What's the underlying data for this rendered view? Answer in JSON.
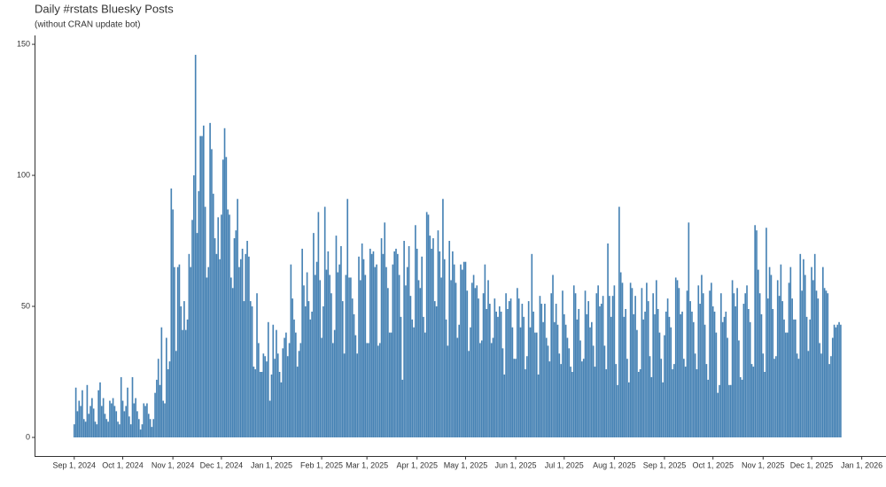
{
  "chart_data": {
    "type": "bar",
    "title": "Daily #rstats Bluesky Posts",
    "subtitle": "(without CRAN update bot)",
    "color": "#4682b4",
    "x": [
      "2024-09-01",
      "2024-09-02",
      "2024-09-03",
      "2024-09-04",
      "2024-09-05",
      "2024-09-06",
      "2024-09-07",
      "2024-09-08",
      "2024-09-09",
      "2024-09-10",
      "2024-09-11",
      "2024-09-12",
      "2024-09-13",
      "2024-09-14",
      "2024-09-15",
      "2024-09-16",
      "2024-09-17",
      "2024-09-18",
      "2024-09-19",
      "2024-09-20",
      "2024-09-21",
      "2024-09-22",
      "2024-09-23",
      "2024-09-24",
      "2024-09-25",
      "2024-09-26",
      "2024-09-27",
      "2024-09-28",
      "2024-09-29",
      "2024-09-30",
      "2024-10-01",
      "2024-10-02",
      "2024-10-03",
      "2024-10-04",
      "2024-10-05",
      "2024-10-06",
      "2024-10-07",
      "2024-10-08",
      "2024-10-09",
      "2024-10-10",
      "2024-10-11",
      "2024-10-12",
      "2024-10-13",
      "2024-10-14",
      "2024-10-15",
      "2024-10-16",
      "2024-10-17",
      "2024-10-18",
      "2024-10-19",
      "2024-10-20",
      "2024-10-21",
      "2024-10-22",
      "2024-10-23",
      "2024-10-24",
      "2024-10-25",
      "2024-10-26",
      "2024-10-27",
      "2024-10-28",
      "2024-10-29",
      "2024-10-30",
      "2024-10-31",
      "2024-11-01",
      "2024-11-02",
      "2024-11-03",
      "2024-11-04",
      "2024-11-05",
      "2024-11-06",
      "2024-11-07",
      "2024-11-08",
      "2024-11-09",
      "2024-11-10",
      "2024-11-11",
      "2024-11-12",
      "2024-11-13",
      "2024-11-14",
      "2024-11-15",
      "2024-11-16",
      "2024-11-17",
      "2024-11-18",
      "2024-11-19",
      "2024-11-20",
      "2024-11-21",
      "2024-11-22",
      "2024-11-23",
      "2024-11-24",
      "2024-11-25",
      "2024-11-26",
      "2024-11-27",
      "2024-11-28",
      "2024-11-29",
      "2024-11-30",
      "2024-12-01",
      "2024-12-02",
      "2024-12-03",
      "2024-12-04",
      "2024-12-05",
      "2024-12-06",
      "2024-12-07",
      "2024-12-08",
      "2024-12-09",
      "2024-12-10",
      "2024-12-11",
      "2024-12-12",
      "2024-12-13",
      "2024-12-14",
      "2024-12-15",
      "2024-12-16",
      "2024-12-17",
      "2024-12-18",
      "2024-12-19",
      "2024-12-20",
      "2024-12-21",
      "2024-12-22",
      "2024-12-23",
      "2024-12-24",
      "2024-12-25",
      "2024-12-26",
      "2024-12-27",
      "2024-12-28",
      "2024-12-29",
      "2024-12-30",
      "2024-12-31",
      "2025-01-01",
      "2025-01-02",
      "2025-01-03",
      "2025-01-04",
      "2025-01-05",
      "2025-01-06",
      "2025-01-07",
      "2025-01-08",
      "2025-01-09",
      "2025-01-10",
      "2025-01-11",
      "2025-01-12",
      "2025-01-13",
      "2025-01-14",
      "2025-01-15",
      "2025-01-16",
      "2025-01-17",
      "2025-01-18",
      "2025-01-19",
      "2025-01-20",
      "2025-01-21",
      "2025-01-22",
      "2025-01-23",
      "2025-01-24",
      "2025-01-25",
      "2025-01-26",
      "2025-01-27",
      "2025-01-28",
      "2025-01-29",
      "2025-01-30",
      "2025-01-31",
      "2025-02-01",
      "2025-02-02",
      "2025-02-03",
      "2025-02-04",
      "2025-02-05",
      "2025-02-06",
      "2025-02-07",
      "2025-02-08",
      "2025-02-09",
      "2025-02-10",
      "2025-02-11",
      "2025-02-12",
      "2025-02-13",
      "2025-02-14",
      "2025-02-15",
      "2025-02-16",
      "2025-02-17",
      "2025-02-18",
      "2025-02-19",
      "2025-02-20",
      "2025-02-21",
      "2025-02-22",
      "2025-02-23",
      "2025-02-24",
      "2025-02-25",
      "2025-02-26",
      "2025-02-27",
      "2025-02-28",
      "2025-03-01",
      "2025-03-02",
      "2025-03-03",
      "2025-03-04",
      "2025-03-05",
      "2025-03-06",
      "2025-03-07",
      "2025-03-08",
      "2025-03-09",
      "2025-03-10",
      "2025-03-11",
      "2025-03-12",
      "2025-03-13",
      "2025-03-14",
      "2025-03-15",
      "2025-03-16",
      "2025-03-17",
      "2025-03-18",
      "2025-03-19",
      "2025-03-20",
      "2025-03-21",
      "2025-03-22",
      "2025-03-23",
      "2025-03-24",
      "2025-03-25",
      "2025-03-26",
      "2025-03-27",
      "2025-03-28",
      "2025-03-29",
      "2025-03-30",
      "2025-03-31",
      "2025-04-01",
      "2025-04-02",
      "2025-04-03",
      "2025-04-04",
      "2025-04-05",
      "2025-04-06",
      "2025-04-07",
      "2025-04-08",
      "2025-04-09",
      "2025-04-10",
      "2025-04-11",
      "2025-04-12",
      "2025-04-13",
      "2025-04-14",
      "2025-04-15",
      "2025-04-16",
      "2025-04-17",
      "2025-04-18",
      "2025-04-19",
      "2025-04-20",
      "2025-04-21",
      "2025-04-22",
      "2025-04-23",
      "2025-04-24",
      "2025-04-25",
      "2025-04-26",
      "2025-04-27",
      "2025-04-28",
      "2025-04-29",
      "2025-04-30",
      "2025-05-01",
      "2025-05-02",
      "2025-05-03",
      "2025-05-04",
      "2025-05-05",
      "2025-05-06",
      "2025-05-07",
      "2025-05-08",
      "2025-05-09",
      "2025-05-10",
      "2025-05-11",
      "2025-05-12",
      "2025-05-13",
      "2025-05-14",
      "2025-05-15",
      "2025-05-16",
      "2025-05-17",
      "2025-05-18",
      "2025-05-19",
      "2025-05-20",
      "2025-05-21",
      "2025-05-22",
      "2025-05-23",
      "2025-05-24",
      "2025-05-25",
      "2025-05-26",
      "2025-05-27",
      "2025-05-28",
      "2025-05-29",
      "2025-05-30",
      "2025-05-31",
      "2025-06-01",
      "2025-06-02",
      "2025-06-03",
      "2025-06-04",
      "2025-06-05",
      "2025-06-06",
      "2025-06-07",
      "2025-06-08",
      "2025-06-09",
      "2025-06-10",
      "2025-06-11",
      "2025-06-12",
      "2025-06-13",
      "2025-06-14",
      "2025-06-15",
      "2025-06-16",
      "2025-06-17",
      "2025-06-18",
      "2025-06-19",
      "2025-06-20",
      "2025-06-21",
      "2025-06-22",
      "2025-06-23",
      "2025-06-24",
      "2025-06-25",
      "2025-06-26",
      "2025-06-27",
      "2025-06-28",
      "2025-06-29",
      "2025-06-30",
      "2025-07-01",
      "2025-07-02",
      "2025-07-03",
      "2025-07-04",
      "2025-07-05",
      "2025-07-06",
      "2025-07-07",
      "2025-07-08",
      "2025-07-09",
      "2025-07-10",
      "2025-07-11",
      "2025-07-12",
      "2025-07-13",
      "2025-07-14",
      "2025-07-15",
      "2025-07-16",
      "2025-07-17",
      "2025-07-18",
      "2025-07-19",
      "2025-07-20",
      "2025-07-21",
      "2025-07-22",
      "2025-07-23",
      "2025-07-24",
      "2025-07-25",
      "2025-07-26",
      "2025-07-27",
      "2025-07-28",
      "2025-07-29",
      "2025-07-30",
      "2025-07-31",
      "2025-08-01",
      "2025-08-02",
      "2025-08-03",
      "2025-08-04",
      "2025-08-05",
      "2025-08-06",
      "2025-08-07",
      "2025-08-08",
      "2025-08-09",
      "2025-08-10",
      "2025-08-11",
      "2025-08-12",
      "2025-08-13",
      "2025-08-14",
      "2025-08-15",
      "2025-08-16",
      "2025-08-17",
      "2025-08-18",
      "2025-08-19",
      "2025-08-20",
      "2025-08-21",
      "2025-08-22",
      "2025-08-23",
      "2025-08-24",
      "2025-08-25",
      "2025-08-26",
      "2025-08-27",
      "2025-08-28",
      "2025-08-29",
      "2025-08-30",
      "2025-08-31",
      "2025-09-01",
      "2025-09-02",
      "2025-09-03",
      "2025-09-04",
      "2025-09-05",
      "2025-09-06",
      "2025-09-07",
      "2025-09-08",
      "2025-09-09",
      "2025-09-10",
      "2025-09-11",
      "2025-09-12",
      "2025-09-13",
      "2025-09-14",
      "2025-09-15",
      "2025-09-16",
      "2025-09-17",
      "2025-09-18",
      "2025-09-19",
      "2025-09-20",
      "2025-09-21",
      "2025-09-22",
      "2025-09-23",
      "2025-09-24",
      "2025-09-25",
      "2025-09-26",
      "2025-09-27",
      "2025-09-28",
      "2025-09-29",
      "2025-09-30",
      "2025-10-01",
      "2025-10-02",
      "2025-10-03",
      "2025-10-04",
      "2025-10-05",
      "2025-10-06",
      "2025-10-07",
      "2025-10-08",
      "2025-10-09",
      "2025-10-10",
      "2025-10-11",
      "2025-10-12",
      "2025-10-13",
      "2025-10-14",
      "2025-10-15",
      "2025-10-16",
      "2025-10-17",
      "2025-10-18",
      "2025-10-19",
      "2025-10-20",
      "2025-10-21",
      "2025-10-22",
      "2025-10-23",
      "2025-10-24",
      "2025-10-25",
      "2025-10-26",
      "2025-10-27",
      "2025-10-28",
      "2025-10-29",
      "2025-10-30",
      "2025-10-31",
      "2025-11-01",
      "2025-11-02",
      "2025-11-03",
      "2025-11-04",
      "2025-11-05",
      "2025-11-06",
      "2025-11-07",
      "2025-11-08",
      "2025-11-09",
      "2025-11-10",
      "2025-11-11",
      "2025-11-12",
      "2025-11-13",
      "2025-11-14",
      "2025-11-15",
      "2025-11-16",
      "2025-11-17",
      "2025-11-18",
      "2025-11-19",
      "2025-11-20",
      "2025-11-21",
      "2025-11-22",
      "2025-11-23",
      "2025-11-24",
      "2025-11-25",
      "2025-11-26",
      "2025-11-27",
      "2025-11-28",
      "2025-11-29",
      "2025-11-30",
      "2025-12-01",
      "2025-12-02",
      "2025-12-03",
      "2025-12-04",
      "2025-12-05",
      "2025-12-06",
      "2025-12-07",
      "2025-12-08",
      "2025-12-09",
      "2025-12-10",
      "2025-12-11",
      "2025-12-12",
      "2025-12-13",
      "2025-12-14",
      "2025-12-15",
      "2025-12-16",
      "2025-12-17",
      "2025-12-18",
      "2025-12-19"
    ],
    "values": [
      5,
      19,
      10,
      14,
      12,
      18,
      7,
      6,
      20,
      9,
      12,
      15,
      11,
      6,
      5,
      18,
      21,
      12,
      15,
      9,
      7,
      6,
      14,
      13,
      15,
      12,
      10,
      6,
      5,
      23,
      14,
      10,
      12,
      19,
      8,
      5,
      23,
      13,
      15,
      10,
      7,
      3,
      5,
      13,
      12,
      13,
      9,
      7,
      4,
      7,
      17,
      22,
      30,
      20,
      42,
      14,
      13,
      38,
      26,
      29,
      95,
      87,
      65,
      33,
      65,
      66,
      50,
      41,
      52,
      41,
      45,
      70,
      65,
      83,
      100,
      146,
      78,
      94,
      115,
      115,
      119,
      88,
      61,
      65,
      120,
      110,
      93,
      76,
      70,
      84,
      68,
      85,
      106,
      118,
      107,
      87,
      85,
      61,
      57,
      76,
      79,
      91,
      65,
      68,
      72,
      52,
      70,
      75,
      69,
      52,
      50,
      27,
      26,
      55,
      36,
      25,
      25,
      32,
      31,
      29,
      44,
      14,
      24,
      43,
      30,
      41,
      32,
      25,
      21,
      34,
      38,
      40,
      31,
      36,
      66,
      53,
      45,
      40,
      27,
      33,
      36,
      72,
      58,
      50,
      63,
      52,
      45,
      48,
      78,
      62,
      67,
      86,
      60,
      38,
      50,
      88,
      64,
      71,
      62,
      55,
      36,
      41,
      77,
      63,
      66,
      73,
      52,
      32,
      62,
      91,
      61,
      61,
      53,
      47,
      39,
      32,
      69,
      60,
      74,
      68,
      62,
      36,
      36,
      72,
      70,
      71,
      65,
      66,
      35,
      36,
      76,
      70,
      82,
      65,
      57,
      40,
      40,
      66,
      71,
      72,
      70,
      62,
      46,
      22,
      75,
      58,
      65,
      73,
      54,
      45,
      42,
      81,
      72,
      60,
      57,
      69,
      46,
      40,
      86,
      85,
      77,
      72,
      76,
      52,
      50,
      79,
      71,
      61,
      91,
      68,
      45,
      35,
      75,
      60,
      71,
      66,
      59,
      38,
      43,
      66,
      64,
      67,
      67,
      56,
      33,
      42,
      59,
      62,
      57,
      58,
      53,
      36,
      37,
      55,
      66,
      49,
      60,
      51,
      36,
      38,
      53,
      48,
      46,
      50,
      48,
      34,
      24,
      55,
      49,
      52,
      53,
      42,
      30,
      30,
      57,
      53,
      42,
      51,
      46,
      26,
      31,
      52,
      42,
      70,
      48,
      40,
      40,
      24,
      54,
      51,
      44,
      51,
      38,
      35,
      29,
      55,
      62,
      44,
      51,
      43,
      32,
      28,
      56,
      47,
      43,
      38,
      34,
      27,
      25,
      58,
      55,
      45,
      49,
      37,
      29,
      30,
      56,
      47,
      52,
      42,
      44,
      35,
      27,
      55,
      58,
      50,
      51,
      54,
      35,
      26,
      74,
      54,
      46,
      54,
      58,
      28,
      20,
      88,
      63,
      59,
      46,
      49,
      30,
      21,
      59,
      57,
      47,
      54,
      41,
      25,
      26,
      57,
      45,
      48,
      59,
      52,
      31,
      23,
      55,
      47,
      60,
      49,
      40,
      30,
      21,
      39,
      48,
      53,
      46,
      42,
      26,
      28,
      61,
      60,
      57,
      47,
      48,
      30,
      27,
      56,
      82,
      52,
      48,
      44,
      32,
      26,
      58,
      51,
      62,
      55,
      43,
      28,
      22,
      56,
      59,
      50,
      48,
      40,
      17,
      20,
      55,
      44,
      46,
      48,
      38,
      20,
      20,
      60,
      55,
      50,
      57,
      37,
      23,
      22,
      51,
      55,
      58,
      49,
      44,
      28,
      27,
      81,
      79,
      64,
      55,
      47,
      32,
      25,
      80,
      53,
      65,
      62,
      49,
      30,
      31,
      60,
      54,
      66,
      52,
      45,
      40,
      40,
      59,
      65,
      53,
      45,
      45,
      32,
      30,
      70,
      56,
      68,
      62,
      46,
      33,
      45,
      65,
      60,
      70,
      56,
      53,
      36,
      32,
      65,
      57,
      56,
      55,
      28,
      31,
      38,
      43,
      42,
      43,
      44,
      43
    ],
    "xlim": [
      "2024-08-08",
      "2026-01-16"
    ],
    "xticks": [
      {
        "value": "2024-09-01",
        "label": "Sep 1, 2024"
      },
      {
        "value": "2024-10-01",
        "label": "Oct 1, 2024"
      },
      {
        "value": "2024-11-01",
        "label": "Nov 1, 2024"
      },
      {
        "value": "2024-12-01",
        "label": "Dec 1, 2024"
      },
      {
        "value": "2025-01-01",
        "label": "Jan 1, 2025"
      },
      {
        "value": "2025-02-01",
        "label": "Feb 1, 2025"
      },
      {
        "value": "2025-03-01",
        "label": "Mar 1, 2025"
      },
      {
        "value": "2025-04-01",
        "label": "Apr 1, 2025"
      },
      {
        "value": "2025-05-01",
        "label": "May 1, 2025"
      },
      {
        "value": "2025-06-01",
        "label": "Jun 1, 2025"
      },
      {
        "value": "2025-07-01",
        "label": "Jul 1, 2025"
      },
      {
        "value": "2025-08-01",
        "label": "Aug 1, 2025"
      },
      {
        "value": "2025-09-01",
        "label": "Sep 1, 2025"
      },
      {
        "value": "2025-10-01",
        "label": "Oct 1, 2025"
      },
      {
        "value": "2025-11-01",
        "label": "Nov 1, 2025"
      },
      {
        "value": "2025-12-01",
        "label": "Dec 1, 2025"
      },
      {
        "value": "2026-01-01",
        "label": "Jan 1, 2026"
      }
    ],
    "ylim": [
      -7.1,
      153.4
    ],
    "yticks": [
      0,
      50,
      100,
      150
    ],
    "grid": false
  }
}
